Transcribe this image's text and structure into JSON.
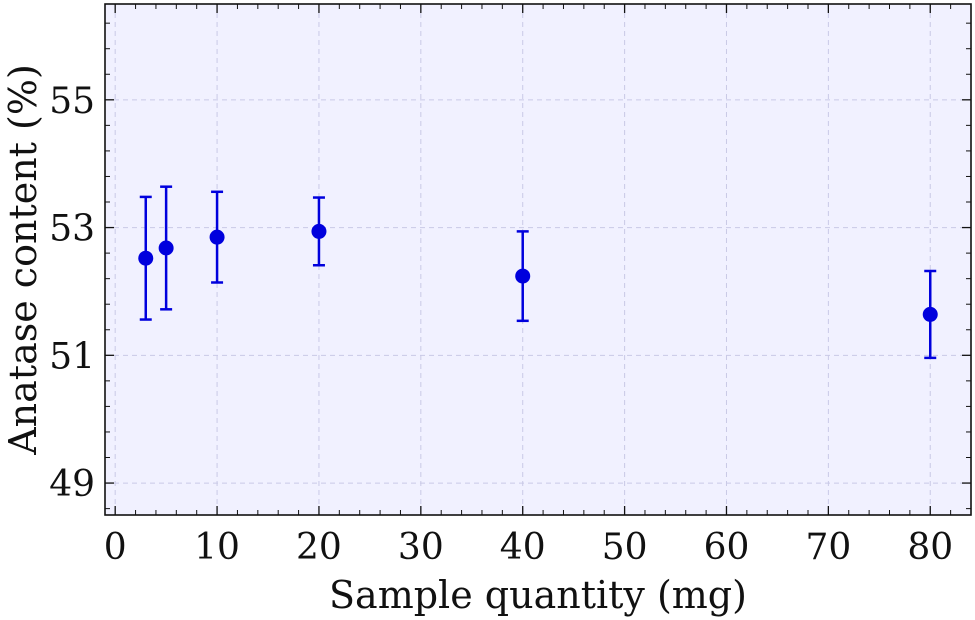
{
  "chart_data": {
    "type": "scatter",
    "xlabel": "Sample quantity (mg)",
    "ylabel": "Anatase content (%)",
    "xlim": [
      -1,
      84
    ],
    "ylim": [
      48.5,
      56.5
    ],
    "x_ticks": [
      0,
      10,
      20,
      30,
      40,
      50,
      60,
      70,
      80
    ],
    "y_ticks": [
      49,
      51,
      53,
      55
    ],
    "grid": true,
    "marker_color": "#0000dd",
    "plot_background": "#f1f1ff",
    "points": [
      {
        "x": 3,
        "y": 52.52,
        "err_low": 0.96,
        "err_high": 0.96
      },
      {
        "x": 5,
        "y": 52.68,
        "err_low": 0.96,
        "err_high": 0.96
      },
      {
        "x": 10,
        "y": 52.85,
        "err_low": 0.71,
        "err_high": 0.71
      },
      {
        "x": 20,
        "y": 52.94,
        "err_low": 0.53,
        "err_high": 0.53
      },
      {
        "x": 40,
        "y": 52.24,
        "err_low": 0.7,
        "err_high": 0.7
      },
      {
        "x": 80,
        "y": 51.64,
        "err_low": 0.68,
        "err_high": 0.68
      }
    ]
  }
}
